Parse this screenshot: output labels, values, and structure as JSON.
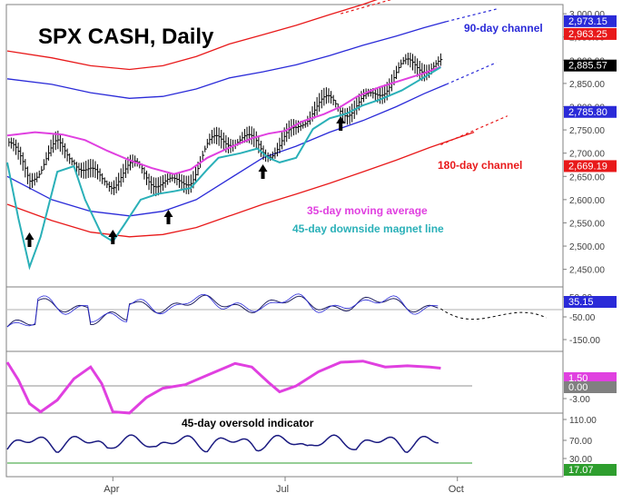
{
  "chart_data": {
    "type": "line",
    "title": "SPX CASH, Daily",
    "x_ticks": [
      "Apr",
      "Jul",
      "Oct"
    ],
    "price_axis": {
      "ticks": [
        "3,000.00",
        "2,950.00",
        "2,900.00",
        "2,850.00",
        "2,800.00",
        "2,750.00",
        "2,700.00",
        "2,650.00",
        "2,600.00",
        "2,550.00",
        "2,500.00",
        "2,450.00"
      ],
      "ylim": [
        2420,
        3010
      ],
      "badges": [
        {
          "label": "2,973.15",
          "value": 2973.15,
          "color": "#2a2ad8"
        },
        {
          "label": "2,963.25",
          "value": 2963.25,
          "color": "#e8191a"
        },
        {
          "label": "2,885.57",
          "value": 2885.57,
          "color": "#000000"
        },
        {
          "label": "2,785.80",
          "value": 2785.8,
          "color": "#2a2ad8"
        },
        {
          "label": "2,669.19",
          "value": 2669.19,
          "color": "#e8191a"
        }
      ]
    },
    "annotations": [
      {
        "text": "90-day channel",
        "color": "#2a2ad8"
      },
      {
        "text": "180-day channel",
        "color": "#e8191a"
      },
      {
        "text": "35-day moving average",
        "color": "#e040e0"
      },
      {
        "text": "45-day downside magnet line",
        "color": "#2ab0b8"
      }
    ],
    "low_markers_x": [
      0.04,
      0.19,
      0.29,
      0.46,
      0.6
    ],
    "series": [
      {
        "name": "35-day moving average",
        "color": "#e040e0",
        "points": [
          [
            0.0,
            2738
          ],
          [
            0.05,
            2745
          ],
          [
            0.1,
            2740
          ],
          [
            0.14,
            2728
          ],
          [
            0.18,
            2705
          ],
          [
            0.22,
            2685
          ],
          [
            0.26,
            2668
          ],
          [
            0.3,
            2655
          ],
          [
            0.33,
            2665
          ],
          [
            0.36,
            2690
          ],
          [
            0.4,
            2712
          ],
          [
            0.44,
            2732
          ],
          [
            0.47,
            2742
          ],
          [
            0.5,
            2748
          ],
          [
            0.53,
            2768
          ],
          [
            0.57,
            2784
          ],
          [
            0.6,
            2800
          ],
          [
            0.63,
            2822
          ],
          [
            0.67,
            2842
          ],
          [
            0.71,
            2857
          ],
          [
            0.75,
            2872
          ],
          [
            0.78,
            2886
          ]
        ]
      },
      {
        "name": "45-day downside magnet line",
        "color": "#2ab0b8",
        "points": [
          [
            0.0,
            2680
          ],
          [
            0.02,
            2560
          ],
          [
            0.04,
            2455
          ],
          [
            0.06,
            2520
          ],
          [
            0.09,
            2660
          ],
          [
            0.12,
            2672
          ],
          [
            0.14,
            2600
          ],
          [
            0.17,
            2525
          ],
          [
            0.19,
            2510
          ],
          [
            0.21,
            2545
          ],
          [
            0.24,
            2600
          ],
          [
            0.27,
            2612
          ],
          [
            0.3,
            2618
          ],
          [
            0.33,
            2625
          ],
          [
            0.36,
            2665
          ],
          [
            0.38,
            2690
          ],
          [
            0.42,
            2700
          ],
          [
            0.45,
            2710
          ],
          [
            0.47,
            2690
          ],
          [
            0.49,
            2680
          ],
          [
            0.52,
            2690
          ],
          [
            0.55,
            2752
          ],
          [
            0.58,
            2775
          ],
          [
            0.61,
            2785
          ],
          [
            0.64,
            2803
          ],
          [
            0.67,
            2815
          ],
          [
            0.71,
            2835
          ],
          [
            0.75,
            2863
          ],
          [
            0.78,
            2885
          ]
        ]
      },
      {
        "name": "90-day channel upper",
        "color": "#2a2ad8",
        "points": [
          [
            0.0,
            2860
          ],
          [
            0.08,
            2848
          ],
          [
            0.15,
            2830
          ],
          [
            0.22,
            2818
          ],
          [
            0.28,
            2822
          ],
          [
            0.34,
            2838
          ],
          [
            0.4,
            2862
          ],
          [
            0.46,
            2875
          ],
          [
            0.52,
            2890
          ],
          [
            0.58,
            2910
          ],
          [
            0.64,
            2932
          ],
          [
            0.7,
            2952
          ],
          [
            0.75,
            2970
          ],
          [
            0.79,
            2983
          ]
        ]
      },
      {
        "name": "90-day channel lower",
        "color": "#2a2ad8",
        "points": [
          [
            0.0,
            2650
          ],
          [
            0.08,
            2600
          ],
          [
            0.15,
            2575
          ],
          [
            0.22,
            2565
          ],
          [
            0.28,
            2575
          ],
          [
            0.34,
            2600
          ],
          [
            0.4,
            2645
          ],
          [
            0.46,
            2690
          ],
          [
            0.52,
            2715
          ],
          [
            0.58,
            2745
          ],
          [
            0.64,
            2770
          ],
          [
            0.7,
            2800
          ],
          [
            0.75,
            2828
          ],
          [
            0.79,
            2848
          ]
        ]
      },
      {
        "name": "180-day channel upper",
        "color": "#e8191a",
        "points": [
          [
            0.0,
            2920
          ],
          [
            0.08,
            2905
          ],
          [
            0.15,
            2888
          ],
          [
            0.22,
            2880
          ],
          [
            0.28,
            2888
          ],
          [
            0.34,
            2908
          ],
          [
            0.4,
            2935
          ],
          [
            0.46,
            2955
          ],
          [
            0.52,
            2975
          ],
          [
            0.58,
            2998
          ],
          [
            0.64,
            3020
          ],
          [
            0.7,
            3045
          ]
        ]
      },
      {
        "name": "180-day channel lower",
        "color": "#e8191a",
        "points": [
          [
            0.0,
            2590
          ],
          [
            0.08,
            2555
          ],
          [
            0.15,
            2530
          ],
          [
            0.22,
            2520
          ],
          [
            0.28,
            2525
          ],
          [
            0.34,
            2540
          ],
          [
            0.4,
            2565
          ],
          [
            0.46,
            2590
          ],
          [
            0.52,
            2612
          ],
          [
            0.58,
            2635
          ],
          [
            0.64,
            2660
          ],
          [
            0.7,
            2685
          ],
          [
            0.76,
            2712
          ],
          [
            0.84,
            2745
          ]
        ]
      }
    ],
    "projections": [
      {
        "name": "90-day channel upper projection",
        "color": "#2a2ad8",
        "points": [
          [
            0.79,
            2983
          ],
          [
            0.88,
            3010
          ]
        ]
      },
      {
        "name": "90-day channel lower projection",
        "color": "#2a2ad8",
        "points": [
          [
            0.79,
            2848
          ],
          [
            0.88,
            2895
          ]
        ]
      },
      {
        "name": "180-day channel upper projection",
        "color": "#e8191a",
        "points": [
          [
            0.6,
            3000
          ],
          [
            0.72,
            3040
          ]
        ]
      },
      {
        "name": "180-day channel lower projection",
        "color": "#e8191a",
        "points": [
          [
            0.78,
            2718
          ],
          [
            0.9,
            2780
          ]
        ]
      }
    ],
    "oscillator": {
      "ticks": [
        "50.00",
        "-50.00",
        "-150.00"
      ],
      "badges": [
        {
          "label": "35.15",
          "value": 35.15,
          "color": "#2a2ad8"
        }
      ]
    },
    "momentum": {
      "ticks": [
        "-3.00"
      ],
      "badges": [
        {
          "label": "1.50",
          "value": 1.5,
          "color": "#e040e0"
        },
        {
          "label": "0.00",
          "value": 0.0,
          "color": "#808080"
        }
      ],
      "points": [
        [
          0.0,
          2.0
        ],
        [
          0.02,
          0.5
        ],
        [
          0.04,
          -1.5
        ],
        [
          0.06,
          -2.2
        ],
        [
          0.09,
          -1.2
        ],
        [
          0.12,
          0.6
        ],
        [
          0.15,
          1.6
        ],
        [
          0.17,
          0.2
        ],
        [
          0.19,
          -2.2
        ],
        [
          0.22,
          -2.3
        ],
        [
          0.25,
          -1.0
        ],
        [
          0.28,
          -0.2
        ],
        [
          0.32,
          0.1
        ],
        [
          0.36,
          0.9
        ],
        [
          0.41,
          1.9
        ],
        [
          0.44,
          1.6
        ],
        [
          0.47,
          0.3
        ],
        [
          0.49,
          -0.5
        ],
        [
          0.52,
          0.0
        ],
        [
          0.56,
          1.2
        ],
        [
          0.6,
          2.0
        ],
        [
          0.64,
          2.1
        ],
        [
          0.68,
          1.6
        ],
        [
          0.72,
          1.7
        ],
        [
          0.76,
          1.6
        ],
        [
          0.78,
          1.5
        ]
      ]
    },
    "oversold": {
      "title": "45-day oversold indicator",
      "ticks": [
        "110.00",
        "70.00",
        "30.00"
      ],
      "badges": [
        {
          "label": "17.07",
          "value": 17.07,
          "color": "#2e9e2e"
        }
      ]
    }
  }
}
